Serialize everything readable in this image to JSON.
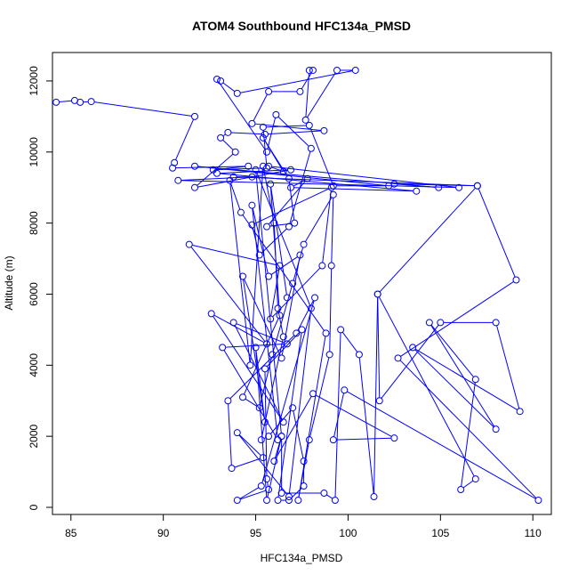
{
  "chart_data": {
    "type": "line",
    "title": "ATOM4 Southbound HFC134a_PMSD",
    "xlabel": "HFC134a_PMSD",
    "ylabel": "Altitude (m)",
    "xlim": [
      84,
      111
    ],
    "ylim": [
      -200,
      12800
    ],
    "xticks": [
      85,
      90,
      95,
      100,
      105,
      110
    ],
    "yticks": [
      0,
      2000,
      4000,
      6000,
      8000,
      10000,
      12000
    ],
    "xtick_labels": [
      "85",
      "90",
      "95",
      "100",
      "105",
      "110"
    ],
    "ytick_labels": [
      "0",
      "2000",
      "4000",
      "6000",
      "8000",
      "10000",
      "12000"
    ],
    "marker": "open-circle",
    "line_color": "#0000ff",
    "grid": false,
    "legend": "none",
    "series": [
      {
        "points": [
          [
            84.2,
            11400
          ],
          [
            85.2,
            11450
          ],
          [
            85.5,
            11400
          ],
          [
            86.1,
            11420
          ],
          [
            91.7,
            11000
          ],
          [
            90.6,
            9700
          ],
          [
            90.5,
            9550
          ],
          [
            94.6,
            9600
          ],
          [
            92.7,
            9500
          ],
          [
            95.6,
            9550
          ],
          [
            95.4,
            10700
          ],
          [
            97.9,
            10750
          ],
          [
            99.2,
            9050
          ],
          [
            102.2,
            9050
          ],
          [
            91.7,
            9600
          ],
          [
            104.9,
            9000
          ],
          [
            102.5,
            9100
          ],
          [
            107.0,
            9050
          ],
          [
            93.8,
            9300
          ],
          [
            94.8,
            9300
          ],
          [
            90.8,
            9200
          ],
          [
            106.0,
            9000
          ],
          [
            95.7,
            9600
          ],
          [
            96.5,
            9450
          ],
          [
            95.4,
            10400
          ],
          [
            96.8,
            9250
          ],
          [
            97.1,
            8000
          ],
          [
            95.6,
            7900
          ],
          [
            97.8,
            9250
          ],
          [
            96.9,
            9000
          ],
          [
            103.7,
            8900
          ],
          [
            92.9,
            9400
          ],
          [
            96.9,
            9500
          ],
          [
            91.7,
            9000
          ],
          [
            93.9,
            10000
          ],
          [
            93.1,
            10400
          ],
          [
            93.5,
            10550
          ],
          [
            95.5,
            10500
          ],
          [
            98.7,
            10600
          ],
          [
            94.8,
            10800
          ],
          [
            95.7,
            11700
          ],
          [
            97.4,
            11700
          ],
          [
            98.1,
            12300
          ],
          [
            97.9,
            12300
          ],
          [
            97.7,
            10900
          ],
          [
            99.4,
            12300
          ],
          [
            100.4,
            12300
          ],
          [
            94.0,
            11650
          ],
          [
            93.1,
            12000
          ],
          [
            92.9,
            12050
          ],
          [
            95.6,
            10000
          ],
          [
            96.1,
            11050
          ],
          [
            98.0,
            10100
          ],
          [
            96.8,
            7900
          ],
          [
            95.2,
            7100
          ],
          [
            94.8,
            7950
          ],
          [
            99.1,
            9000
          ],
          [
            98.6,
            6800
          ],
          [
            95.8,
            5300
          ],
          [
            96.3,
            6800
          ],
          [
            91.4,
            7400
          ],
          [
            95.6,
            4600
          ],
          [
            92.6,
            5450
          ],
          [
            96.5,
            2400
          ],
          [
            93.8,
            5200
          ],
          [
            96.7,
            4600
          ],
          [
            93.2,
            4500
          ],
          [
            96.2,
            1900
          ],
          [
            94.8,
            8500
          ],
          [
            95.7,
            6500
          ],
          [
            97.4,
            7100
          ],
          [
            96.4,
            4200
          ],
          [
            94.3,
            6500
          ],
          [
            95.5,
            2400
          ],
          [
            95.0,
            4500
          ],
          [
            95.6,
            200
          ],
          [
            96.4,
            2000
          ],
          [
            96.4,
            400
          ],
          [
            98.7,
            400
          ],
          [
            99.3,
            200
          ],
          [
            99.6,
            5000
          ],
          [
            100.6,
            4300
          ],
          [
            101.4,
            300
          ],
          [
            101.6,
            6000
          ],
          [
            101.7,
            3000
          ],
          [
            105.0,
            5200
          ],
          [
            108.0,
            5200
          ],
          [
            109.3,
            2700
          ],
          [
            103.5,
            4500
          ],
          [
            108.0,
            2200
          ],
          [
            104.4,
            5200
          ],
          [
            106.9,
            3600
          ],
          [
            106.1,
            500
          ],
          [
            106.9,
            800
          ],
          [
            101.6,
            6000
          ],
          [
            107.0,
            9050
          ],
          [
            109.1,
            6400
          ],
          [
            102.7,
            4200
          ],
          [
            110.3,
            200
          ],
          [
            99.8,
            3300
          ],
          [
            99.2,
            1900
          ],
          [
            102.5,
            1950
          ],
          [
            98.1,
            3200
          ],
          [
            96.0,
            1300
          ],
          [
            96.4,
            2000
          ],
          [
            95.0,
            9500
          ],
          [
            98.0,
            5600
          ],
          [
            96.8,
            300
          ],
          [
            94.0,
            2100
          ],
          [
            95.4,
            1400
          ],
          [
            93.7,
            1100
          ],
          [
            93.5,
            3000
          ],
          [
            97.2,
            4900
          ],
          [
            98.2,
            5900
          ],
          [
            95.3,
            600
          ],
          [
            94.0,
            200
          ],
          [
            95.7,
            500
          ],
          [
            95.6,
            800
          ],
          [
            95.5,
            3900
          ],
          [
            97.5,
            5000
          ],
          [
            96.2,
            200
          ],
          [
            96.8,
            200
          ],
          [
            97.6,
            600
          ],
          [
            97.6,
            1300
          ],
          [
            97.0,
            2800
          ],
          [
            95.7,
            2000
          ],
          [
            95.3,
            1900
          ],
          [
            96.5,
            4800
          ],
          [
            96.2,
            5600
          ],
          [
            96.0,
            8000
          ],
          [
            95.4,
            9600
          ],
          [
            94.7,
            4000
          ],
          [
            93.6,
            9200
          ],
          [
            94.2,
            8300
          ],
          [
            98.8,
            4900
          ],
          [
            97.3,
            200
          ],
          [
            97.9,
            1900
          ],
          [
            99.0,
            4300
          ],
          [
            99.1,
            6800
          ],
          [
            99.2,
            8800
          ],
          [
            97.6,
            7400
          ],
          [
            97.0,
            6300
          ],
          [
            95.9,
            4300
          ],
          [
            95.2,
            2800
          ],
          [
            94.3,
            3100
          ],
          [
            96.3,
            5400
          ],
          [
            95.8,
            9100
          ],
          [
            96.7,
            5900
          ]
        ]
      }
    ]
  }
}
